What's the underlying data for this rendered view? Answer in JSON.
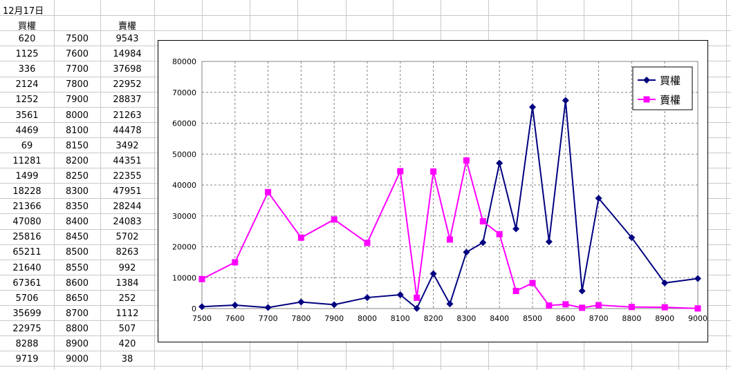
{
  "sheet": {
    "date": "12月17日",
    "header_call": "買權",
    "header_put": "賣權",
    "rows": [
      [
        "620",
        "7500",
        "9543"
      ],
      [
        "1125",
        "7600",
        "14984"
      ],
      [
        "336",
        "7700",
        "37698"
      ],
      [
        "2124",
        "7800",
        "22952"
      ],
      [
        "1252",
        "7900",
        "28837"
      ],
      [
        "3561",
        "8000",
        "21263"
      ],
      [
        "4469",
        "8100",
        "44478"
      ],
      [
        "69",
        "8150",
        "3492"
      ],
      [
        "11281",
        "8200",
        "44351"
      ],
      [
        "1499",
        "8250",
        "22355"
      ],
      [
        "18228",
        "8300",
        "47951"
      ],
      [
        "21366",
        "8350",
        "28244"
      ],
      [
        "47080",
        "8400",
        "24083"
      ],
      [
        "25816",
        "8450",
        "5702"
      ],
      [
        "65211",
        "8500",
        "8263"
      ],
      [
        "21640",
        "8550",
        "992"
      ],
      [
        "67361",
        "8600",
        "1384"
      ],
      [
        "5706",
        "8650",
        "252"
      ],
      [
        "35699",
        "8700",
        "1112"
      ],
      [
        "22975",
        "8800",
        "507"
      ],
      [
        "8288",
        "8900",
        "420"
      ],
      [
        "9719",
        "9000",
        "38"
      ]
    ]
  },
  "chart_data": {
    "type": "line",
    "x": [
      7500,
      7600,
      7700,
      7800,
      7900,
      8000,
      8100,
      8150,
      8200,
      8250,
      8300,
      8350,
      8400,
      8450,
      8500,
      8550,
      8600,
      8650,
      8700,
      8800,
      8900,
      9000
    ],
    "x_tick_labels": [
      "7500",
      "7600",
      "7700",
      "7800",
      "7900",
      "8000",
      "8100",
      "8200",
      "8300",
      "8400",
      "8500",
      "8600",
      "8700",
      "8800",
      "8900",
      "9000"
    ],
    "y_tick_labels": [
      "0",
      "10000",
      "20000",
      "30000",
      "40000",
      "50000",
      "60000",
      "70000",
      "80000"
    ],
    "ylim": [
      0,
      80000
    ],
    "grid": true,
    "legend_position": "top-right",
    "series": [
      {
        "name": "買權",
        "color": "#000080",
        "marker": "diamond",
        "values": [
          620,
          1125,
          336,
          2124,
          1252,
          3561,
          4469,
          69,
          11281,
          1499,
          18228,
          21366,
          47080,
          25816,
          65211,
          21640,
          67361,
          5706,
          35699,
          22975,
          8288,
          9719
        ]
      },
      {
        "name": "賣權",
        "color": "#ff00ff",
        "marker": "square",
        "values": [
          9543,
          14984,
          37698,
          22952,
          28837,
          21263,
          44478,
          3492,
          44351,
          22355,
          47951,
          28244,
          24083,
          5702,
          8263,
          992,
          1384,
          252,
          1112,
          507,
          420,
          38
        ]
      }
    ]
  }
}
